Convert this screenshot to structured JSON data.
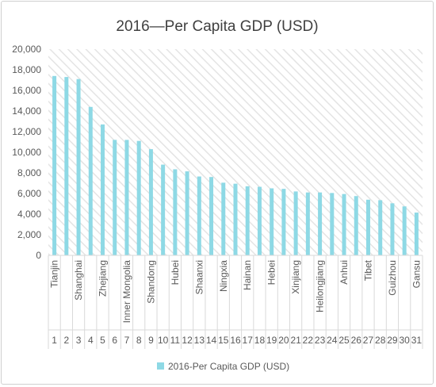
{
  "chart_data": {
    "type": "bar",
    "title": "2016—Per Capita GDP (USD)",
    "xlabel": "",
    "ylabel": "",
    "ylim": [
      0,
      20000
    ],
    "yticks": [
      "0",
      "2,000",
      "4,000",
      "6,000",
      "8,000",
      "10,000",
      "12,000",
      "14,000",
      "16,000",
      "18,000",
      "20,000"
    ],
    "grid": false,
    "plot_background": "diagonal hatch",
    "legend_position": "bottom",
    "categories": [
      "1",
      "2",
      "3",
      "4",
      "5",
      "6",
      "7",
      "8",
      "9",
      "10",
      "11",
      "12",
      "13",
      "14",
      "15",
      "16",
      "17",
      "18",
      "19",
      "20",
      "21",
      "22",
      "23",
      "24",
      "25",
      "26",
      "27",
      "28",
      "29",
      "30",
      "31"
    ],
    "category_names": [
      "Tianjin",
      "",
      "Shanghai",
      "",
      "Zhejiang",
      "",
      "Inner Mongolia",
      "",
      "Shandong",
      "",
      "Hubei",
      "",
      "Shaanxi",
      "",
      "Ningxia",
      "",
      "Hainan",
      "",
      "Hebei",
      "",
      "Xinjiang",
      "",
      "Heilongjiang",
      "",
      "Anhui",
      "",
      "Tibet",
      "",
      "Guizhou",
      "",
      "Gansu"
    ],
    "series": [
      {
        "name": "2016-Per Capita GDP (USD)",
        "color": "#8ed9e5",
        "values": [
          17400,
          17300,
          17100,
          14400,
          12700,
          11200,
          11200,
          11100,
          10300,
          8800,
          8350,
          8150,
          7650,
          7600,
          7050,
          6950,
          6700,
          6650,
          6500,
          6450,
          6200,
          6100,
          6100,
          6050,
          5950,
          5750,
          5400,
          5350,
          5050,
          4750,
          4150
        ]
      }
    ]
  }
}
